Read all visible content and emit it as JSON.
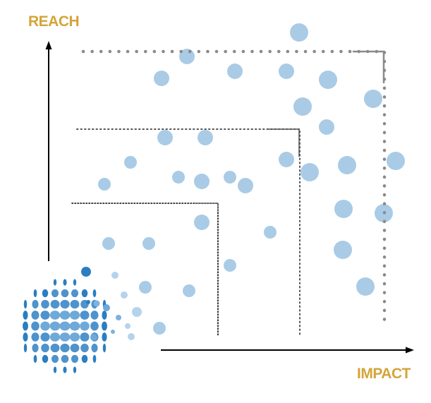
{
  "labels": {
    "y_axis": "REACH",
    "x_axis": "IMPACT"
  },
  "colors": {
    "label": "#D4A43A",
    "bubble": "#A9CBE6",
    "axis": "#000000",
    "boundary_outer": "#8A8A8A",
    "boundary_inner": "#555555",
    "logo_dark": "#2A7EC1",
    "logo_mid": "#6FA9D8",
    "logo_light": "#B5D3EC"
  },
  "regions": {
    "count": 3,
    "line_styles": [
      "dotted-fine",
      "dotted-fine",
      "dotted-heavy"
    ]
  },
  "logo": {
    "name": "bubble-globe-logo"
  },
  "icons": {
    "y_arrow": "arrow-up-icon",
    "x_arrow": "arrow-right-icon"
  }
}
